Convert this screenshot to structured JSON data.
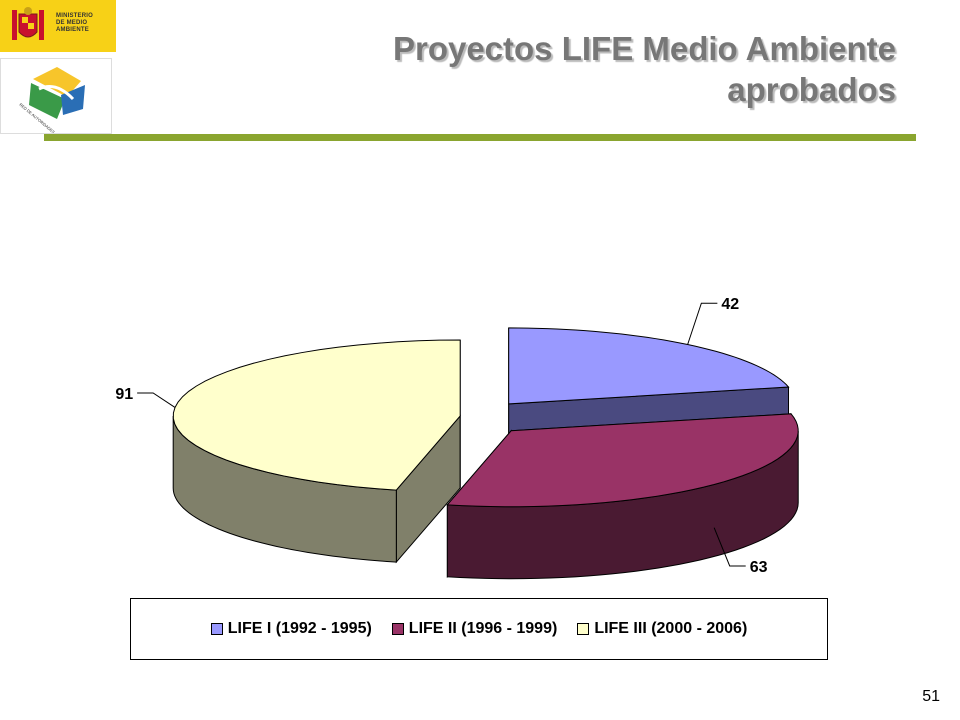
{
  "logos": {
    "ministerio_text": "MINISTERIO\nDE MEDIO AMBIENTE",
    "red_text": "RED DE AUTORIDADES AMBIENTALES"
  },
  "slide": {
    "title_line1": "Proyectos LIFE Medio Ambiente",
    "title_line2": "aprobados",
    "page_number": "51"
  },
  "colors": {
    "title_bar": "#8aa52f",
    "life1": "#9999ff",
    "life2": "#993366",
    "life3": "#ffffcc"
  },
  "chart_data": {
    "type": "pie",
    "style": "3d exploded",
    "title": "",
    "categories": [
      "LIFE I (1992 - 1995)",
      "LIFE II (1996 - 1999)",
      "LIFE III (2000 - 2006)"
    ],
    "values": [
      42,
      63,
      91
    ],
    "data_labels": [
      "42",
      "63",
      "91"
    ],
    "legend_position": "bottom"
  }
}
